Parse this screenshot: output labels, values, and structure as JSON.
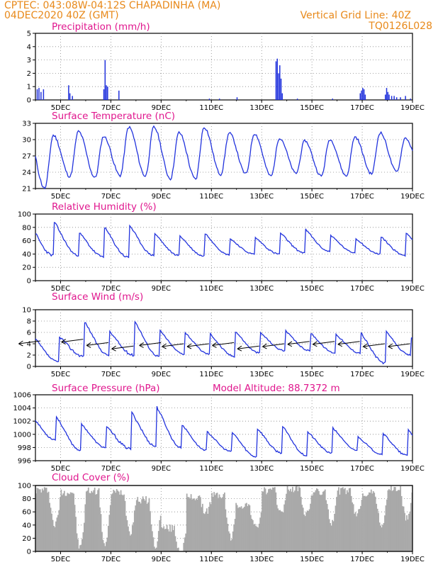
{
  "header": {
    "left_line1": "CPTEC:   043:08W-04:12S   CHAPADINHA (MA)",
    "left_line2": "04DEC2020 40Z (GMT)",
    "right_line1": "Vertical Grid Line: 40Z",
    "right_line2": "TQ0126L028"
  },
  "colors": {
    "header": "#e8891a",
    "title": "#e0178e",
    "series": "#2233dd",
    "cloud": "#a9a9a9",
    "wind_arrow": "#000000"
  },
  "chart_data": [
    {
      "type": "bar",
      "title": "Precipitation (mm/h)",
      "x_tick_labels": [
        "5DEC",
        "7DEC",
        "9DEC",
        "11DEC",
        "13DEC",
        "15DEC",
        "17DEC",
        "19DEC"
      ],
      "ylim": [
        0,
        5
      ],
      "y_ticks": [
        "0",
        "1",
        "2",
        "3",
        "4",
        "5"
      ],
      "grid": true,
      "time_range_days": [
        4.0,
        19.0
      ],
      "events": [
        {
          "t": 4.05,
          "v": 0.8
        },
        {
          "t": 4.12,
          "v": 0.9
        },
        {
          "t": 4.2,
          "v": 0.6
        },
        {
          "t": 4.3,
          "v": 0.8
        },
        {
          "t": 5.3,
          "v": 1.1
        },
        {
          "t": 5.35,
          "v": 0.5
        },
        {
          "t": 5.45,
          "v": 0.3
        },
        {
          "t": 6.7,
          "v": 0.8
        },
        {
          "t": 6.75,
          "v": 3.0
        },
        {
          "t": 6.8,
          "v": 1.1
        },
        {
          "t": 6.85,
          "v": 1.0
        },
        {
          "t": 7.3,
          "v": 0.7
        },
        {
          "t": 10.9,
          "v": 0.1
        },
        {
          "t": 11.3,
          "v": 0.1
        },
        {
          "t": 12.0,
          "v": 0.2
        },
        {
          "t": 13.55,
          "v": 2.9
        },
        {
          "t": 13.6,
          "v": 3.1
        },
        {
          "t": 13.65,
          "v": 2.0
        },
        {
          "t": 13.7,
          "v": 2.6
        },
        {
          "t": 13.75,
          "v": 1.6
        },
        {
          "t": 13.8,
          "v": 0.5
        },
        {
          "t": 14.4,
          "v": 0.1
        },
        {
          "t": 15.8,
          "v": 0.1
        },
        {
          "t": 16.9,
          "v": 0.5
        },
        {
          "t": 16.95,
          "v": 0.7
        },
        {
          "t": 17.0,
          "v": 0.9
        },
        {
          "t": 17.05,
          "v": 0.8
        },
        {
          "t": 17.1,
          "v": 0.4
        },
        {
          "t": 17.9,
          "v": 0.4
        },
        {
          "t": 17.95,
          "v": 0.9
        },
        {
          "t": 18.0,
          "v": 0.6
        },
        {
          "t": 18.05,
          "v": 0.4
        },
        {
          "t": 18.15,
          "v": 0.3
        },
        {
          "t": 18.25,
          "v": 0.3
        },
        {
          "t": 18.35,
          "v": 0.2
        },
        {
          "t": 18.5,
          "v": 0.2
        },
        {
          "t": 18.7,
          "v": 0.3
        },
        {
          "t": 18.9,
          "v": 0.1
        }
      ]
    },
    {
      "type": "line",
      "title": "Surface Temperature (nC)",
      "x_tick_labels": [
        "5DEC",
        "7DEC",
        "9DEC",
        "11DEC",
        "13DEC",
        "15DEC",
        "17DEC",
        "19DEC"
      ],
      "ylim": [
        21,
        33
      ],
      "y_ticks": [
        "21",
        "24",
        "27",
        "30",
        "33"
      ],
      "grid": true,
      "time_range_days": [
        4.0,
        19.0
      ],
      "daily_max": [
        30.8,
        31.5,
        30.6,
        32.3,
        32.3,
        31.3,
        32.3,
        31.2,
        31.1,
        30.3,
        29.8,
        30.0,
        30.5,
        31.3,
        30.3,
        31.4
      ],
      "daily_min": [
        21.0,
        23.2,
        23.0,
        23.4,
        23.3,
        22.8,
        22.7,
        23.6,
        23.7,
        23.3,
        23.8,
        23.3,
        23.3,
        23.7,
        24.1,
        24.0
      ]
    },
    {
      "type": "line",
      "title": "Relative Humidity (%)",
      "x_tick_labels": [
        "5DEC",
        "7DEC",
        "9DEC",
        "11DEC",
        "13DEC",
        "15DEC",
        "17DEC",
        "19DEC"
      ],
      "ylim": [
        0,
        100
      ],
      "y_ticks": [
        "0",
        "20",
        "40",
        "60",
        "80",
        "100"
      ],
      "grid": true,
      "time_range_days": [
        4.0,
        19.0
      ],
      "daily_max": [
        99,
        80,
        90,
        93,
        78,
        74,
        78,
        68,
        70,
        78,
        84,
        74,
        68,
        72,
        80,
        98
      ],
      "daily_min": [
        38,
        38,
        36,
        35,
        38,
        38,
        37,
        39,
        40,
        40,
        42,
        44,
        42,
        40,
        38,
        38
      ]
    },
    {
      "type": "line",
      "title": "Surface Wind (m/s)",
      "x_tick_labels": [
        "5DEC",
        "7DEC",
        "9DEC",
        "11DEC",
        "13DEC",
        "15DEC",
        "17DEC",
        "19DEC"
      ],
      "ylim": [
        0,
        10
      ],
      "y_ticks": [
        "0",
        "2",
        "4",
        "6",
        "8",
        "10"
      ],
      "grid": true,
      "time_range_days": [
        4.0,
        19.0
      ],
      "daily_max": [
        6.0,
        9.2,
        7.0,
        9.3,
        7.2,
        6.8,
        6.6,
        7.0,
        6.6,
        7.0,
        6.6,
        6.4,
        7.0,
        7.0,
        5.6,
        6.2
      ],
      "daily_min": [
        0.8,
        1.8,
        2.0,
        2.0,
        1.8,
        2.2,
        2.2,
        1.8,
        2.4,
        2.8,
        2.8,
        2.4,
        2.4,
        0.6,
        2.0,
        2.8
      ],
      "wind_direction": "east, toward west",
      "wind_arrow_times": [
        4.2,
        5.9,
        6.9,
        7.9,
        9.0,
        9.9,
        10.9,
        11.9,
        12.9,
        13.9,
        14.9,
        15.9,
        16.9,
        17.9,
        18.9
      ],
      "wind_arrow_speeds": [
        4.5,
        4.8,
        4.2,
        3.6,
        4.2,
        4.0,
        4.0,
        4.2,
        3.6,
        4.0,
        4.4,
        4.4,
        4.4,
        4.0,
        4.0
      ]
    },
    {
      "type": "line",
      "title": "Surface Pressure (hPa)",
      "annotation": "Model Altitude: 88.7372 m",
      "x_tick_labels": [
        "5DEC",
        "7DEC",
        "9DEC",
        "11DEC",
        "13DEC",
        "15DEC",
        "17DEC",
        "19DEC"
      ],
      "ylim": [
        996,
        1006
      ],
      "y_ticks": [
        "996",
        "998",
        "1000",
        "1002",
        "1004",
        "1006"
      ],
      "grid": true,
      "time_range_days": [
        4.0,
        19.0
      ],
      "daily_max": [
        1003.4,
        1002.0,
        1001.6,
        1004.0,
        1005.0,
        1002.0,
        1000.8,
        1000.8,
        1001.4,
        1001.8,
        1000.8,
        1001.4,
        1000.0,
        1000.6,
        1001.4,
        999.6
      ],
      "daily_min": [
        999.2,
        997.6,
        998.0,
        997.8,
        998.2,
        998.0,
        997.6,
        997.4,
        996.6,
        997.2,
        996.8,
        997.2,
        997.6,
        997.0,
        996.8,
        996.2
      ]
    },
    {
      "type": "area",
      "title": "Cloud Cover (%)",
      "x_tick_labels": [
        "5DEC",
        "7DEC",
        "9DEC",
        "11DEC",
        "13DEC",
        "15DEC",
        "17DEC",
        "19DEC"
      ],
      "ylim": [
        0,
        100
      ],
      "y_ticks": [
        "0",
        "20",
        "40",
        "60",
        "80",
        "100"
      ],
      "grid": true,
      "time_range_days": [
        4.0,
        19.0
      ],
      "daily_level": [
        93,
        90,
        92,
        90,
        78,
        35,
        82,
        85,
        70,
        92,
        95,
        90,
        92,
        88,
        95,
        92
      ],
      "daily_trough": [
        40,
        5,
        10,
        30,
        8,
        0,
        60,
        20,
        35,
        60,
        55,
        45,
        55,
        40,
        50,
        40
      ]
    }
  ]
}
